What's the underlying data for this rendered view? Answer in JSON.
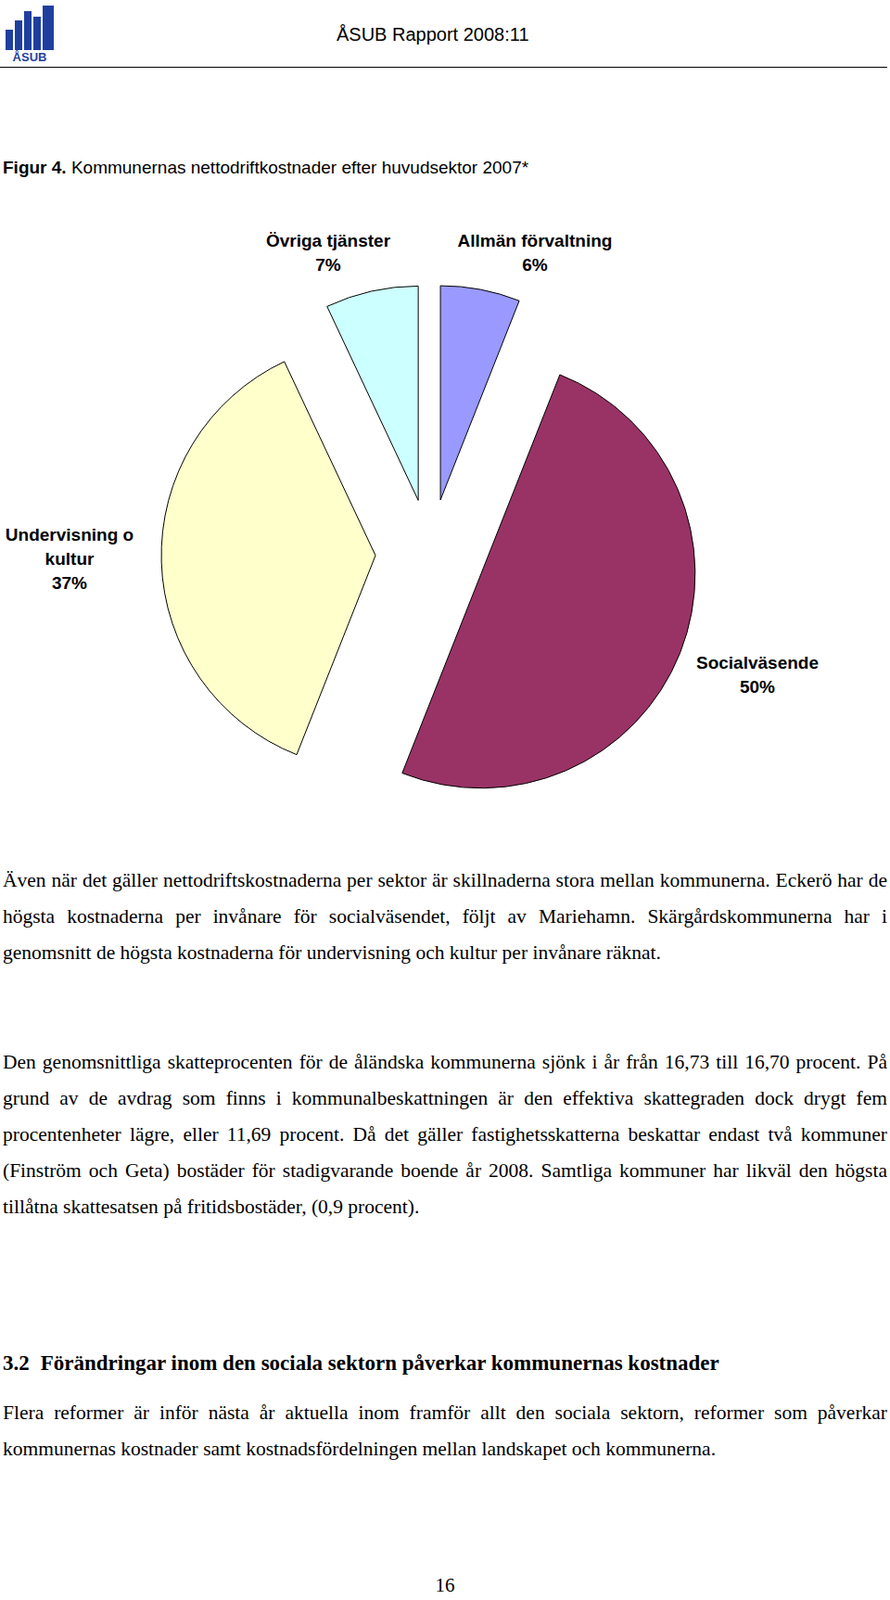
{
  "header": {
    "logo_text": "ÅSUB",
    "report": "ÅSUB Rapport 2008:11"
  },
  "figure": {
    "label": "Figur 4."
  },
  "chart_data": {
    "type": "pie",
    "title": "Kommunernas nettodriftkostnader efter huvudsektor 2007*",
    "categories": [
      "Allmän förvaltning",
      "Socialväsende",
      "Undervisning o kultur",
      "Övriga tjänster"
    ],
    "values": [
      6,
      50,
      37,
      7
    ],
    "value_labels": [
      "6%",
      "50%",
      "37%",
      "7%"
    ],
    "colors": [
      "#9999ff",
      "#993366",
      "#ffffcc",
      "#ccffff"
    ],
    "data_labels": true
  },
  "paragraphs": [
    "Även när det gäller nettodriftskostnaderna per sektor är skillnaderna stora mellan kommunerna. Eckerö har de högsta kostnaderna per invånare för socialväsendet, följt av Mariehamn. Skärgårdskommunerna har i genomsnitt de högsta kostnaderna för undervisning och kultur per invånare räknat.",
    "Den genomsnittliga skatteprocenten för de åländska kommunerna sjönk i år från 16,73 till 16,70 procent. På grund av de avdrag som finns i kommunalbeskattningen är den effektiva skattegraden dock drygt fem procentenheter lägre, eller 11,69 procent. Då det gäller fastighetsskatterna beskattar endast två kommuner (Finström och Geta) bostäder för stadigvarande boende år 2008. Samtliga kommuner har likväl den högsta tillåtna skattesatsen på fritidsbostäder, (0,9 procent)."
  ],
  "section": {
    "number": "3.2",
    "title": "Förändringar inom den sociala sektorn påverkar kommunernas kostnader",
    "paragraph": "Flera reformer är inför nästa år aktuella inom framför allt den sociala sektorn, reformer som påverkar kommunernas kostnader samt kostnadsfördelningen mellan landskapet och kommunerna."
  },
  "page_number": "16"
}
